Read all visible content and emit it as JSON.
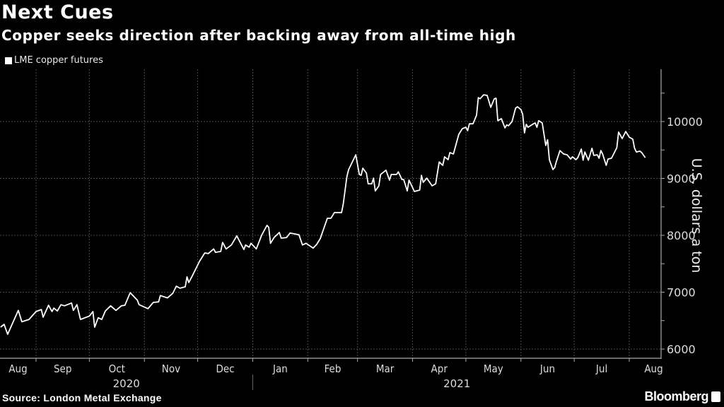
{
  "title": "Next Cues",
  "subtitle": "Copper seeks direction after backing away from all-time high",
  "source": "Source: London Metal Exchange",
  "brand": "Bloomberg",
  "colors": {
    "background": "#000000",
    "line": "#ffffff",
    "grid": "#555555",
    "text": "#ffffff"
  },
  "chart_data": {
    "type": "line",
    "title": "Next Cues",
    "subtitle": "Copper seeks direction after backing away from all-time high",
    "xlabel": "",
    "ylabel": "U.S. dollars a ton",
    "ylim": [
      6000,
      10800
    ],
    "yticks": [
      6000,
      7000,
      8000,
      9000,
      10000
    ],
    "y_axis_side": "right",
    "grid": true,
    "legend": "top-left",
    "month_ticks": [
      "Aug",
      "Sep",
      "Oct",
      "Nov",
      "Dec",
      "Jan",
      "Feb",
      "Mar",
      "Apr",
      "May",
      "Jun",
      "Jul",
      "Aug"
    ],
    "year_labels": [
      "2020",
      "2021"
    ],
    "series": [
      {
        "name": "LME copper futures",
        "points": [
          [
            "2020-08-12",
            6385
          ],
          [
            "2020-08-14",
            6435
          ],
          [
            "2020-08-16",
            6260
          ],
          [
            "2020-08-22",
            6680
          ],
          [
            "2020-08-24",
            6480
          ],
          [
            "2020-08-28",
            6520
          ],
          [
            "2020-09-01",
            6660
          ],
          [
            "2020-09-04",
            6695
          ],
          [
            "2020-09-05",
            6560
          ],
          [
            "2020-09-08",
            6770
          ],
          [
            "2020-09-10",
            6660
          ],
          [
            "2020-09-11",
            6720
          ],
          [
            "2020-09-13",
            6670
          ],
          [
            "2020-09-15",
            6780
          ],
          [
            "2020-09-17",
            6760
          ],
          [
            "2020-09-21",
            6810
          ],
          [
            "2020-09-22",
            6680
          ],
          [
            "2020-09-24",
            6780
          ],
          [
            "2020-09-26",
            6520
          ],
          [
            "2020-10-01",
            6580
          ],
          [
            "2020-10-03",
            6660
          ],
          [
            "2020-10-04",
            6385
          ],
          [
            "2020-10-06",
            6550
          ],
          [
            "2020-10-08",
            6520
          ],
          [
            "2020-10-10",
            6670
          ],
          [
            "2020-10-13",
            6760
          ],
          [
            "2020-10-16",
            6680
          ],
          [
            "2020-10-19",
            6760
          ],
          [
            "2020-10-21",
            6770
          ],
          [
            "2020-10-24",
            6990
          ],
          [
            "2020-10-28",
            6860
          ],
          [
            "2020-10-29",
            6780
          ],
          [
            "2020-11-03",
            6710
          ],
          [
            "2020-11-06",
            6820
          ],
          [
            "2020-11-09",
            6830
          ],
          [
            "2020-11-10",
            6940
          ],
          [
            "2020-11-14",
            6900
          ],
          [
            "2020-11-17",
            6980
          ],
          [
            "2020-11-19",
            7105
          ],
          [
            "2020-11-21",
            7070
          ],
          [
            "2020-11-24",
            7095
          ],
          [
            "2020-11-25",
            7270
          ],
          [
            "2020-11-26",
            7170
          ],
          [
            "2020-11-28",
            7290
          ],
          [
            "2020-12-02",
            7540
          ],
          [
            "2020-12-05",
            7690
          ],
          [
            "2020-12-07",
            7680
          ],
          [
            "2020-12-10",
            7760
          ],
          [
            "2020-12-11",
            7700
          ],
          [
            "2020-12-14",
            7715
          ],
          [
            "2020-12-15",
            7875
          ],
          [
            "2020-12-17",
            7760
          ],
          [
            "2020-12-20",
            7830
          ],
          [
            "2020-12-23",
            7990
          ],
          [
            "2020-12-27",
            7750
          ],
          [
            "2020-12-28",
            7830
          ],
          [
            "2020-12-30",
            7790
          ],
          [
            "2020-12-31",
            7860
          ],
          [
            "2021-01-03",
            7760
          ],
          [
            "2021-01-06",
            8000
          ],
          [
            "2021-01-09",
            8175
          ],
          [
            "2021-01-10",
            8140
          ],
          [
            "2021-01-11",
            7860
          ],
          [
            "2021-01-13",
            7960
          ],
          [
            "2021-01-16",
            8050
          ],
          [
            "2021-01-17",
            7950
          ],
          [
            "2021-01-20",
            7960
          ],
          [
            "2021-01-22",
            8040
          ],
          [
            "2021-01-27",
            8010
          ],
          [
            "2021-01-29",
            7830
          ],
          [
            "2021-01-31",
            7860
          ],
          [
            "2021-02-04",
            7775
          ],
          [
            "2021-02-06",
            7840
          ],
          [
            "2021-02-08",
            7940
          ],
          [
            "2021-02-12",
            8300
          ],
          [
            "2021-02-14",
            8300
          ],
          [
            "2021-02-16",
            8400
          ],
          [
            "2021-02-20",
            8400
          ],
          [
            "2021-02-21",
            8560
          ],
          [
            "2021-02-23",
            9030
          ],
          [
            "2021-02-24",
            9155
          ],
          [
            "2021-02-28",
            9415
          ],
          [
            "2021-03-02",
            9070
          ],
          [
            "2021-03-03",
            9055
          ],
          [
            "2021-03-04",
            9180
          ],
          [
            "2021-03-06",
            9095
          ],
          [
            "2021-03-07",
            8905
          ],
          [
            "2021-03-09",
            8905
          ],
          [
            "2021-03-10",
            9005
          ],
          [
            "2021-03-11",
            8780
          ],
          [
            "2021-03-13",
            8870
          ],
          [
            "2021-03-14",
            9070
          ],
          [
            "2021-03-17",
            9145
          ],
          [
            "2021-03-19",
            8970
          ],
          [
            "2021-03-20",
            9070
          ],
          [
            "2021-03-23",
            9070
          ],
          [
            "2021-03-24",
            9115
          ],
          [
            "2021-03-26",
            8980
          ],
          [
            "2021-03-27",
            8980
          ],
          [
            "2021-03-29",
            8780
          ],
          [
            "2021-03-30",
            8970
          ],
          [
            "2021-04-02",
            8770
          ],
          [
            "2021-04-05",
            8795
          ],
          [
            "2021-04-06",
            9055
          ],
          [
            "2021-04-07",
            8930
          ],
          [
            "2021-04-09",
            9005
          ],
          [
            "2021-04-12",
            8870
          ],
          [
            "2021-04-14",
            8905
          ],
          [
            "2021-04-16",
            9290
          ],
          [
            "2021-04-18",
            9230
          ],
          [
            "2021-04-19",
            9380
          ],
          [
            "2021-04-21",
            9330
          ],
          [
            "2021-04-22",
            9455
          ],
          [
            "2021-04-24",
            9430
          ],
          [
            "2021-04-27",
            9775
          ],
          [
            "2021-04-29",
            9875
          ],
          [
            "2021-05-01",
            9900
          ],
          [
            "2021-05-02",
            9840
          ],
          [
            "2021-05-03",
            9960
          ],
          [
            "2021-05-05",
            9960
          ],
          [
            "2021-05-07",
            10110
          ],
          [
            "2021-05-08",
            10420
          ],
          [
            "2021-05-09",
            10400
          ],
          [
            "2021-05-11",
            10470
          ],
          [
            "2021-05-13",
            10460
          ],
          [
            "2021-05-15",
            10250
          ],
          [
            "2021-05-17",
            10400
          ],
          [
            "2021-05-18",
            10410
          ],
          [
            "2021-05-19",
            10015
          ],
          [
            "2021-05-21",
            10050
          ],
          [
            "2021-05-23",
            9890
          ],
          [
            "2021-05-24",
            9940
          ],
          [
            "2021-05-25",
            9925
          ],
          [
            "2021-05-27",
            10000
          ],
          [
            "2021-05-29",
            10235
          ],
          [
            "2021-05-30",
            10260
          ],
          [
            "2021-06-01",
            10210
          ],
          [
            "2021-06-02",
            10125
          ],
          [
            "2021-06-03",
            9800
          ],
          [
            "2021-06-04",
            9950
          ],
          [
            "2021-06-05",
            9900
          ],
          [
            "2021-06-08",
            9960
          ],
          [
            "2021-06-09",
            9975
          ],
          [
            "2021-06-10",
            9900
          ],
          [
            "2021-06-11",
            10015
          ],
          [
            "2021-06-13",
            9975
          ],
          [
            "2021-06-15",
            9580
          ],
          [
            "2021-06-16",
            9680
          ],
          [
            "2021-06-17",
            9330
          ],
          [
            "2021-06-19",
            9155
          ],
          [
            "2021-06-20",
            9190
          ],
          [
            "2021-06-21",
            9300
          ],
          [
            "2021-06-23",
            9490
          ],
          [
            "2021-06-25",
            9430
          ],
          [
            "2021-06-27",
            9415
          ],
          [
            "2021-06-29",
            9340
          ],
          [
            "2021-06-30",
            9380
          ],
          [
            "2021-07-02",
            9330
          ],
          [
            "2021-07-03",
            9365
          ],
          [
            "2021-07-05",
            9515
          ],
          [
            "2021-07-06",
            9320
          ],
          [
            "2021-07-07",
            9465
          ],
          [
            "2021-07-09",
            9320
          ],
          [
            "2021-07-11",
            9530
          ],
          [
            "2021-07-12",
            9405
          ],
          [
            "2021-07-14",
            9415
          ],
          [
            "2021-07-15",
            9355
          ],
          [
            "2021-07-16",
            9490
          ],
          [
            "2021-07-17",
            9430
          ],
          [
            "2021-07-19",
            9230
          ],
          [
            "2021-07-20",
            9340
          ],
          [
            "2021-07-22",
            9355
          ],
          [
            "2021-07-25",
            9540
          ],
          [
            "2021-07-26",
            9815
          ],
          [
            "2021-07-28",
            9700
          ],
          [
            "2021-07-30",
            9825
          ],
          [
            "2021-08-01",
            9725
          ],
          [
            "2021-08-03",
            9690
          ],
          [
            "2021-08-04",
            9530
          ],
          [
            "2021-08-05",
            9465
          ],
          [
            "2021-08-07",
            9480
          ],
          [
            "2021-08-08",
            9455
          ],
          [
            "2021-08-10",
            9365
          ]
        ]
      }
    ]
  }
}
